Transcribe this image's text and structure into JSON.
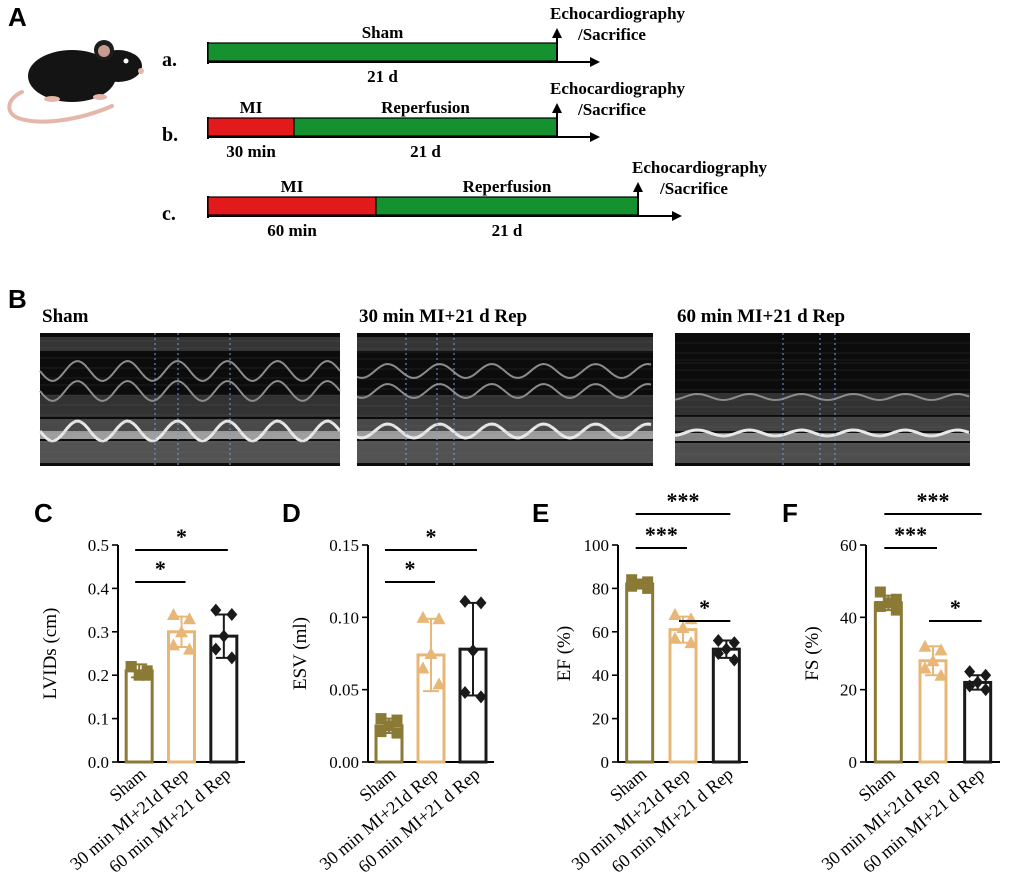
{
  "panel_letters": {
    "A": "A",
    "B": "B",
    "C": "C",
    "D": "D",
    "E": "E",
    "F": "F"
  },
  "colors": {
    "sham": "#8a7a35",
    "mi30": "#e8b778",
    "mi60": "#1a1a1a",
    "ischemia": "#e31a1c",
    "reperfusion": "#16912f",
    "echo_bg": "#0c0c0c",
    "echo_marker": "#6f9fe8"
  },
  "timeline": {
    "rows": [
      {
        "label": "a.",
        "segments": [
          {
            "kind": "reperfusion",
            "top": "Sham",
            "bottom": "21 d"
          }
        ],
        "end_label_line1": "Echocardiography",
        "end_label_line2": "/Sacrifice"
      },
      {
        "label": "b.",
        "segments": [
          {
            "kind": "ischemia",
            "top": "MI",
            "bottom": "30 min"
          },
          {
            "kind": "reperfusion",
            "top": "Reperfusion",
            "bottom": "21 d"
          }
        ],
        "end_label_line1": "Echocardiography",
        "end_label_line2": "/Sacrifice"
      },
      {
        "label": "c.",
        "segments": [
          {
            "kind": "ischemia",
            "top": "MI",
            "bottom": "60 min"
          },
          {
            "kind": "reperfusion",
            "top": "Reperfusion",
            "bottom": "21 d"
          }
        ],
        "end_label_line1": "Echocardiography",
        "end_label_line2": "/Sacrifice"
      }
    ]
  },
  "echo_panels": [
    {
      "title": "Sham"
    },
    {
      "title": "30 min MI+21 d Rep"
    },
    {
      "title": "60 min MI+21 d Rep"
    }
  ],
  "chart_data": [
    {
      "panel": "C",
      "type": "bar",
      "ylabel": "LVIDs (cm)",
      "ylim": [
        0.0,
        0.5
      ],
      "yticks": [
        "0.0",
        "0.1",
        "0.2",
        "0.3",
        "0.4",
        "0.5"
      ],
      "ytick_values": [
        0,
        0.1,
        0.2,
        0.3,
        0.4,
        0.5
      ],
      "categories": [
        "Sham",
        "30 min MI+21d Rep",
        "60 min MI+21 d Rep"
      ],
      "means": [
        0.21,
        0.3,
        0.29
      ],
      "sd": [
        0.015,
        0.035,
        0.05
      ],
      "points": [
        [
          0.22,
          0.21,
          0.2,
          0.22,
          0.2
        ],
        [
          0.34,
          0.33,
          0.3,
          0.27,
          0.26
        ],
        [
          0.35,
          0.34,
          0.29,
          0.26,
          0.24
        ]
      ],
      "brackets": [
        {
          "from": 0,
          "to": 1,
          "label": "*"
        },
        {
          "from": 0,
          "to": 2,
          "label": "*"
        }
      ]
    },
    {
      "panel": "D",
      "type": "bar",
      "ylabel": "ESV (ml)",
      "ylim": [
        0.0,
        0.15
      ],
      "yticks": [
        "0.00",
        "0.05",
        "0.10",
        "0.15"
      ],
      "ytick_values": [
        0,
        0.05,
        0.1,
        0.15
      ],
      "categories": [
        "Sham",
        "30 min MI+21d Rep",
        "60 min MI+21 d Rep"
      ],
      "means": [
        0.025,
        0.074,
        0.078
      ],
      "sd": [
        0.005,
        0.025,
        0.032
      ],
      "points": [
        [
          0.03,
          0.029,
          0.025,
          0.021,
          0.02
        ],
        [
          0.1,
          0.099,
          0.075,
          0.065,
          0.054
        ],
        [
          0.111,
          0.11,
          0.077,
          0.048,
          0.045
        ]
      ],
      "brackets": [
        {
          "from": 0,
          "to": 1,
          "label": "*"
        },
        {
          "from": 0,
          "to": 2,
          "label": "*"
        }
      ]
    },
    {
      "panel": "E",
      "type": "bar",
      "ylabel": "EF (%)",
      "ylim": [
        0,
        100
      ],
      "yticks": [
        "0",
        "20",
        "40",
        "60",
        "80",
        "100"
      ],
      "ytick_values": [
        0,
        20,
        40,
        60,
        80,
        100
      ],
      "categories": [
        "Sham",
        "30 min MI+21d Rep",
        "60 min MI+21 d Rep"
      ],
      "means": [
        82,
        61,
        52
      ],
      "sd": [
        2,
        6,
        4
      ],
      "points": [
        [
          84,
          83,
          82,
          81,
          80
        ],
        [
          68,
          66,
          62,
          57,
          55
        ],
        [
          56,
          55,
          52,
          50,
          47
        ]
      ],
      "brackets": [
        {
          "from": 0,
          "to": 1,
          "label": "***"
        },
        {
          "from": 1,
          "to": 2,
          "label": "*"
        },
        {
          "from": 0,
          "to": 2,
          "label": "***"
        }
      ]
    },
    {
      "panel": "F",
      "type": "bar",
      "ylabel": "FS (%)",
      "ylim": [
        0,
        60
      ],
      "yticks": [
        "0",
        "20",
        "40",
        "60"
      ],
      "ytick_values": [
        0,
        20,
        40,
        60
      ],
      "categories": [
        "Sham",
        "30 min MI+21d Rep",
        "60 min MI+21 d Rep"
      ],
      "means": [
        44,
        28,
        22
      ],
      "sd": [
        2,
        4,
        2
      ],
      "points": [
        [
          47,
          45,
          44,
          43,
          42
        ],
        [
          32,
          31,
          28,
          26,
          24
        ],
        [
          25,
          24,
          22,
          21,
          20
        ]
      ],
      "brackets": [
        {
          "from": 0,
          "to": 1,
          "label": "***"
        },
        {
          "from": 1,
          "to": 2,
          "label": "*"
        },
        {
          "from": 0,
          "to": 2,
          "label": "***"
        }
      ]
    }
  ]
}
